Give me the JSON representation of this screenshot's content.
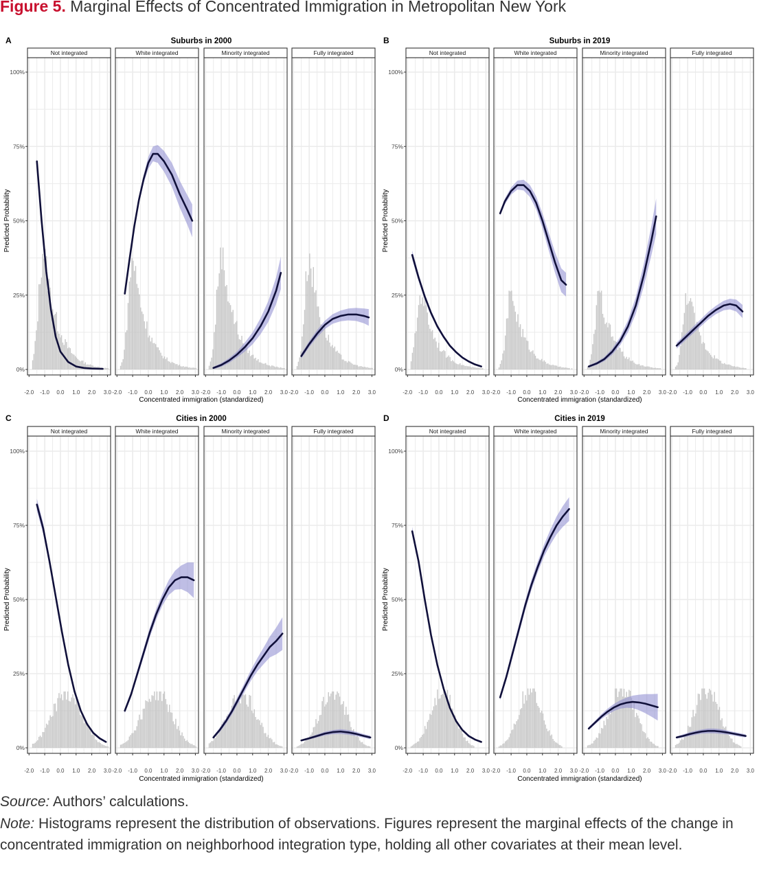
{
  "figure": {
    "label": "Figure 5.",
    "title": "Marginal Effects of Concentrated Immigration in Metropolitan New York"
  },
  "chart_data": {
    "type": "line",
    "ylabel": "Predicted Probability",
    "xlabel": "Concentrated immigration (standardized)",
    "y_ticks": [
      "0%",
      "25%",
      "50%",
      "75%",
      "100%"
    ],
    "x_ticks": [
      "-2.0",
      "-1.0",
      "0.0",
      "1.0",
      "2.0",
      "3.0"
    ],
    "xlim": [
      -2.1,
      3.2
    ],
    "ylim": [
      0,
      1.05
    ],
    "facets": [
      "Not integrated",
      "White integrated",
      "Minority integrated",
      "Fully integrated"
    ],
    "colors": {
      "line": "#10103a",
      "ribbon": "#8a88d0",
      "histogram": "#bdbdbd",
      "grid": "#ebebeb"
    },
    "note": "Histograms show the distribution of observations (scaled for display); curves are predicted probabilities with confidence ribbons.",
    "panels": [
      {
        "letter": "A",
        "title": "Suburbs in 2000",
        "facets": [
          {
            "name": "Not integrated",
            "x": [
              -1.5,
              -1.2,
              -0.9,
              -0.6,
              -0.3,
              0.0,
              0.5,
              1.0,
              1.5,
              2.0,
              2.7
            ],
            "y": [
              0.7,
              0.5,
              0.33,
              0.2,
              0.11,
              0.06,
              0.025,
              0.01,
              0.005,
              0.003,
              0.002
            ],
            "ci": [
              0.01,
              0.01,
              0.01,
              0.008,
              0.006,
              0.005,
              0.004,
              0.003,
              0.003,
              0.003,
              0.003
            ],
            "hist": {
              "peak": -1.1,
              "sd": 0.45,
              "tail": 0.9,
              "height": 0.41
            }
          },
          {
            "name": "White integrated",
            "x": [
              -1.5,
              -1.2,
              -0.9,
              -0.6,
              -0.3,
              0.0,
              0.3,
              0.6,
              1.0,
              1.5,
              2.0,
              2.5,
              2.8
            ],
            "y": [
              0.255,
              0.37,
              0.48,
              0.57,
              0.64,
              0.695,
              0.725,
              0.725,
              0.7,
              0.655,
              0.59,
              0.535,
              0.5
            ],
            "ci": [
              0.006,
              0.008,
              0.01,
              0.012,
              0.015,
              0.02,
              0.025,
              0.03,
              0.035,
              0.04,
              0.045,
              0.05,
              0.055
            ],
            "hist": {
              "peak": -1.0,
              "sd": 0.45,
              "tail": 0.9,
              "height": 0.38
            }
          },
          {
            "name": "Minority integrated",
            "x": [
              -1.5,
              -1.0,
              -0.5,
              0.0,
              0.5,
              1.0,
              1.5,
              2.0,
              2.5,
              2.8
            ],
            "y": [
              0.005,
              0.015,
              0.03,
              0.05,
              0.075,
              0.105,
              0.145,
              0.195,
              0.265,
              0.325
            ],
            "ci": [
              0.004,
              0.006,
              0.008,
              0.01,
              0.015,
              0.02,
              0.027,
              0.035,
              0.045,
              0.055
            ],
            "hist": {
              "peak": -1.0,
              "sd": 0.45,
              "tail": 0.9,
              "height": 0.41
            }
          },
          {
            "name": "Fully integrated",
            "x": [
              -1.5,
              -1.0,
              -0.5,
              0.0,
              0.5,
              1.0,
              1.5,
              2.0,
              2.5,
              2.8
            ],
            "y": [
              0.045,
              0.085,
              0.12,
              0.15,
              0.17,
              0.18,
              0.185,
              0.185,
              0.18,
              0.175
            ],
            "ci": [
              0.008,
              0.01,
              0.012,
              0.014,
              0.016,
              0.018,
              0.02,
              0.022,
              0.025,
              0.028
            ],
            "hist": {
              "peak": -1.0,
              "sd": 0.45,
              "tail": 0.9,
              "height": 0.39
            }
          }
        ]
      },
      {
        "letter": "B",
        "title": "Suburbs in 2019",
        "facets": [
          {
            "name": "Not integrated",
            "x": [
              -1.7,
              -1.3,
              -0.9,
              -0.5,
              -0.1,
              0.3,
              0.7,
              1.1,
              1.5,
              1.9,
              2.3,
              2.7
            ],
            "y": [
              0.385,
              0.31,
              0.245,
              0.19,
              0.145,
              0.11,
              0.08,
              0.058,
              0.04,
              0.027,
              0.017,
              0.01
            ],
            "ci": [
              0.015,
              0.012,
              0.01,
              0.008,
              0.007,
              0.006,
              0.005,
              0.004,
              0.004,
              0.003,
              0.003,
              0.003
            ],
            "hist": {
              "peak": -1.1,
              "sd": 0.5,
              "tail": 0.9,
              "height": 0.265
            }
          },
          {
            "name": "White integrated",
            "x": [
              -1.7,
              -1.4,
              -1.0,
              -0.6,
              -0.2,
              0.2,
              0.6,
              1.0,
              1.4,
              1.8,
              2.2,
              2.5
            ],
            "y": [
              0.525,
              0.565,
              0.6,
              0.62,
              0.62,
              0.6,
              0.56,
              0.5,
              0.43,
              0.36,
              0.3,
              0.285
            ],
            "ci": [
              0.008,
              0.01,
              0.012,
              0.015,
              0.018,
              0.02,
              0.022,
              0.025,
              0.03,
              0.035,
              0.04,
              0.04
            ],
            "hist": {
              "peak": -1.0,
              "sd": 0.45,
              "tail": 0.9,
              "height": 0.265
            }
          },
          {
            "name": "Minority integrated",
            "x": [
              -1.7,
              -1.2,
              -0.7,
              -0.2,
              0.3,
              0.8,
              1.3,
              1.8,
              2.3,
              2.6
            ],
            "y": [
              0.01,
              0.02,
              0.035,
              0.06,
              0.095,
              0.145,
              0.215,
              0.315,
              0.435,
              0.515
            ],
            "ci": [
              0.004,
              0.005,
              0.007,
              0.01,
              0.014,
              0.02,
              0.028,
              0.038,
              0.05,
              0.06
            ],
            "hist": {
              "peak": -1.0,
              "sd": 0.45,
              "tail": 0.9,
              "height": 0.265
            }
          },
          {
            "name": "Fully integrated",
            "x": [
              -1.7,
              -1.2,
              -0.7,
              -0.2,
              0.3,
              0.8,
              1.3,
              1.7,
              2.1,
              2.5
            ],
            "y": [
              0.08,
              0.105,
              0.13,
              0.155,
              0.18,
              0.2,
              0.215,
              0.22,
              0.215,
              0.195
            ],
            "ci": [
              0.01,
              0.01,
              0.011,
              0.012,
              0.013,
              0.014,
              0.016,
              0.018,
              0.02,
              0.022
            ],
            "hist": {
              "peak": -1.0,
              "sd": 0.45,
              "tail": 0.9,
              "height": 0.265
            }
          }
        ]
      },
      {
        "letter": "C",
        "title": "Cities in 2000",
        "facets": [
          {
            "name": "Not integrated",
            "x": [
              -1.5,
              -1.1,
              -0.7,
              -0.3,
              0.1,
              0.5,
              0.9,
              1.3,
              1.7,
              2.1,
              2.5,
              2.9
            ],
            "y": [
              0.82,
              0.74,
              0.63,
              0.51,
              0.39,
              0.28,
              0.19,
              0.125,
              0.08,
              0.05,
              0.032,
              0.02
            ],
            "ci": [
              0.02,
              0.018,
              0.015,
              0.012,
              0.01,
              0.008,
              0.006,
              0.005,
              0.004,
              0.004,
              0.004,
              0.003
            ],
            "hist": {
              "peak": 0.4,
              "sd": 0.95,
              "tail": 0,
              "height": 0.19
            }
          },
          {
            "name": "White integrated",
            "x": [
              -1.5,
              -1.1,
              -0.7,
              -0.3,
              0.1,
              0.5,
              0.9,
              1.3,
              1.7,
              2.1,
              2.5,
              2.9
            ],
            "y": [
              0.125,
              0.18,
              0.25,
              0.32,
              0.39,
              0.45,
              0.5,
              0.54,
              0.565,
              0.575,
              0.575,
              0.565
            ],
            "ci": [
              0.008,
              0.01,
              0.012,
              0.014,
              0.016,
              0.018,
              0.02,
              0.025,
              0.032,
              0.04,
              0.05,
              0.06
            ],
            "hist": {
              "peak": 0.5,
              "sd": 0.95,
              "tail": 0,
              "height": 0.19
            }
          },
          {
            "name": "Minority integrated",
            "x": [
              -1.5,
              -1.1,
              -0.7,
              -0.3,
              0.1,
              0.5,
              0.9,
              1.3,
              1.7,
              2.1,
              2.5,
              2.9
            ],
            "y": [
              0.035,
              0.06,
              0.09,
              0.125,
              0.165,
              0.205,
              0.245,
              0.28,
              0.31,
              0.34,
              0.36,
              0.385
            ],
            "ci": [
              0.005,
              0.007,
              0.009,
              0.011,
              0.013,
              0.015,
              0.018,
              0.022,
              0.028,
              0.035,
              0.045,
              0.055
            ],
            "hist": {
              "peak": 0.3,
              "sd": 0.95,
              "tail": 0,
              "height": 0.18
            }
          },
          {
            "name": "Fully integrated",
            "x": [
              -1.5,
              -1.0,
              -0.5,
              0.0,
              0.5,
              1.0,
              1.5,
              2.0,
              2.5,
              2.9
            ],
            "y": [
              0.025,
              0.032,
              0.04,
              0.048,
              0.053,
              0.055,
              0.052,
              0.047,
              0.04,
              0.035
            ],
            "ci": [
              0.003,
              0.004,
              0.005,
              0.006,
              0.007,
              0.008,
              0.008,
              0.007,
              0.006,
              0.006
            ],
            "hist": {
              "peak": 0.5,
              "sd": 0.85,
              "tail": 0,
              "height": 0.19
            }
          }
        ]
      },
      {
        "letter": "D",
        "title": "Cities in 2019",
        "facets": [
          {
            "name": "Not integrated",
            "x": [
              -1.7,
              -1.3,
              -0.9,
              -0.5,
              -0.1,
              0.3,
              0.7,
              1.1,
              1.5,
              1.9,
              2.3,
              2.7
            ],
            "y": [
              0.73,
              0.63,
              0.5,
              0.38,
              0.28,
              0.2,
              0.135,
              0.09,
              0.06,
              0.04,
              0.028,
              0.02
            ],
            "ci": [
              0.015,
              0.013,
              0.011,
              0.009,
              0.008,
              0.007,
              0.006,
              0.005,
              0.004,
              0.004,
              0.003,
              0.003
            ],
            "hist": {
              "peak": 0.2,
              "sd": 0.75,
              "tail": 0,
              "height": 0.2
            }
          },
          {
            "name": "White integrated",
            "x": [
              -1.7,
              -1.3,
              -0.9,
              -0.5,
              -0.1,
              0.3,
              0.7,
              1.1,
              1.5,
              1.9,
              2.3,
              2.7
            ],
            "y": [
              0.17,
              0.24,
              0.32,
              0.4,
              0.48,
              0.55,
              0.61,
              0.665,
              0.71,
              0.75,
              0.78,
              0.805
            ],
            "ci": [
              0.01,
              0.012,
              0.014,
              0.015,
              0.016,
              0.017,
              0.018,
              0.02,
              0.025,
              0.03,
              0.035,
              0.04
            ],
            "hist": {
              "peak": 0.2,
              "sd": 0.75,
              "tail": 0,
              "height": 0.2
            }
          },
          {
            "name": "Minority integrated",
            "x": [
              -1.7,
              -1.3,
              -0.9,
              -0.5,
              -0.1,
              0.3,
              0.7,
              1.1,
              1.5,
              1.9,
              2.3,
              2.7
            ],
            "y": [
              0.065,
              0.085,
              0.105,
              0.122,
              0.136,
              0.146,
              0.152,
              0.155,
              0.153,
              0.149,
              0.143,
              0.137
            ],
            "ci": [
              0.005,
              0.006,
              0.008,
              0.01,
              0.012,
              0.014,
              0.017,
              0.021,
              0.026,
              0.032,
              0.038,
              0.045
            ],
            "hist": {
              "peak": 0.4,
              "sd": 0.85,
              "tail": 0,
              "height": 0.2
            }
          },
          {
            "name": "Fully integrated",
            "x": [
              -1.7,
              -1.3,
              -0.9,
              -0.5,
              -0.1,
              0.3,
              0.7,
              1.1,
              1.5,
              1.9,
              2.3,
              2.7
            ],
            "y": [
              0.035,
              0.04,
              0.046,
              0.051,
              0.055,
              0.057,
              0.057,
              0.055,
              0.052,
              0.048,
              0.044,
              0.04
            ],
            "ci": [
              0.004,
              0.005,
              0.006,
              0.007,
              0.007,
              0.008,
              0.008,
              0.008,
              0.007,
              0.006,
              0.006,
              0.005
            ],
            "hist": {
              "peak": 0.2,
              "sd": 0.8,
              "tail": 0,
              "height": 0.2
            }
          }
        ]
      }
    ]
  },
  "footer": {
    "source_label": "Source:",
    "source_text": " Authors’ calculations.",
    "note_label": "Note:",
    "note_text": " Histograms represent the distribution of observations. Figures represent the marginal effects of the change in concentrated immigration on neighborhood integration type, holding all other covariates at their mean level."
  }
}
